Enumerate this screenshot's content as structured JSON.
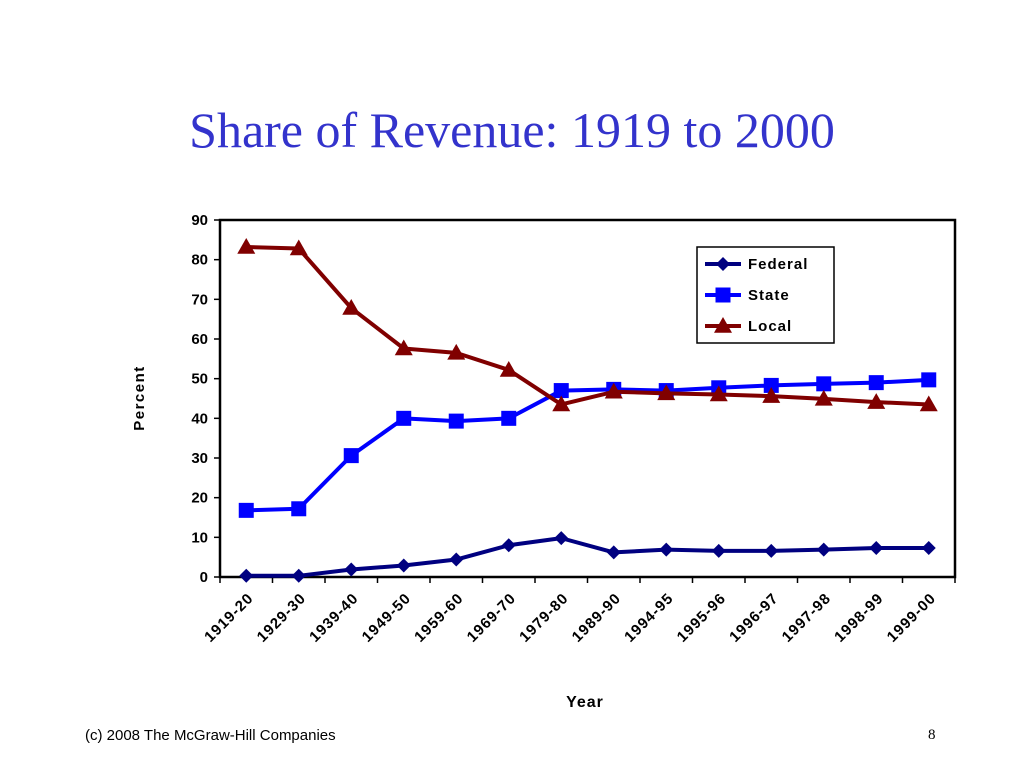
{
  "slide": {
    "title": "Share of Revenue: 1919 to 2000",
    "footer": "(c) 2008 The McGraw-Hill Companies",
    "page_number": "8"
  },
  "chart_data": {
    "type": "line",
    "title": "",
    "xlabel": "Year",
    "ylabel": "Percent",
    "ylim": [
      0,
      90
    ],
    "yticks": [
      0,
      10,
      20,
      30,
      40,
      50,
      60,
      70,
      80,
      90
    ],
    "grid": false,
    "legend_position": "top-right",
    "categories": [
      "1919-20",
      "1929-30",
      "1939-40",
      "1949-50",
      "1959-60",
      "1969-70",
      "1979-80",
      "1989-90",
      "1994-95",
      "1995-96",
      "1996-97",
      "1997-98",
      "1998-99",
      "1999-00"
    ],
    "series": [
      {
        "name": "Federal",
        "color": "#000080",
        "marker": "diamond",
        "values": [
          0.3,
          0.3,
          1.9,
          2.9,
          4.4,
          8.0,
          9.8,
          6.2,
          6.9,
          6.6,
          6.6,
          6.9,
          7.3,
          7.3
        ]
      },
      {
        "name": "State",
        "color": "#0000ff",
        "marker": "square",
        "values": [
          16.8,
          17.2,
          30.6,
          40.0,
          39.3,
          40.0,
          47.0,
          47.3,
          47.0,
          47.7,
          48.3,
          48.7,
          49.0,
          49.7
        ]
      },
      {
        "name": "Local",
        "color": "#800000",
        "marker": "triangle",
        "values": [
          83.2,
          82.8,
          67.8,
          57.6,
          56.5,
          52.2,
          43.5,
          46.7,
          46.3,
          46.0,
          45.6,
          44.9,
          44.1,
          43.5
        ]
      }
    ]
  }
}
